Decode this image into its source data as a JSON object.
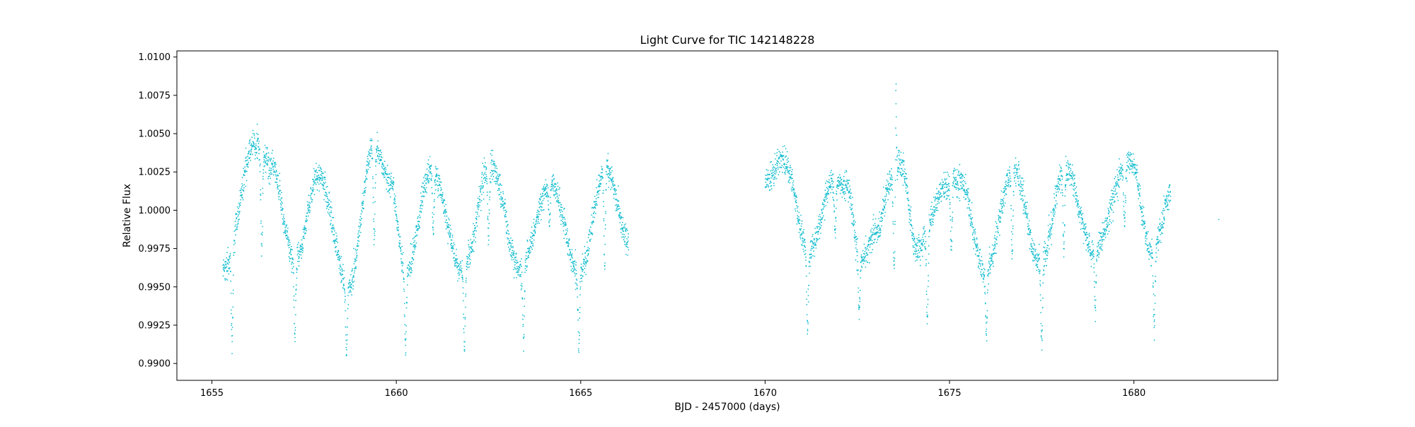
{
  "chart_data": {
    "type": "scatter",
    "title": "Light Curve for TIC 142148228",
    "xlabel": "BJD - 2457000 (days)",
    "ylabel": "Relative Flux",
    "xlim": [
      1654.05,
      1683.9
    ],
    "ylim": [
      0.9889,
      1.0104
    ],
    "x_ticks": [
      1655,
      1660,
      1665,
      1670,
      1675,
      1680
    ],
    "x_tick_labels": [
      "1655",
      "1660",
      "1665",
      "1670",
      "1675",
      "1680"
    ],
    "y_ticks": [
      0.99,
      0.9925,
      0.995,
      0.9975,
      1.0,
      1.0025,
      1.005,
      1.0075,
      1.01
    ],
    "y_tick_labels": [
      "0.9900",
      "0.9925",
      "0.9950",
      "0.9975",
      "1.0000",
      "1.0025",
      "1.0050",
      "1.0075",
      "1.0100"
    ],
    "grid": false,
    "marker_color": "#17becf",
    "series": [
      {
        "segments": [
          {
            "x_range": [
              1655.3,
              1666.3
            ],
            "cadence_days": 0.00139
          },
          {
            "x_range": [
              1670.0,
              1681.0
            ],
            "cadence_days": 0.00139
          }
        ],
        "modulation_extrema": [
          [
            1655.35,
            0.9963
          ],
          [
            1656.15,
            1.0043
          ],
          [
            1656.6,
            1.003
          ],
          [
            1657.25,
            0.9968
          ],
          [
            1657.9,
            1.0023
          ],
          [
            1658.7,
            0.995
          ],
          [
            1659.4,
            1.0042
          ],
          [
            1659.85,
            1.0018
          ],
          [
            1660.25,
            0.9958
          ],
          [
            1660.95,
            1.0027
          ],
          [
            1661.8,
            0.996
          ],
          [
            1662.55,
            1.003
          ],
          [
            1663.35,
            0.9962
          ],
          [
            1664.2,
            1.0017
          ],
          [
            1664.95,
            0.9958
          ],
          [
            1665.7,
            1.0028
          ],
          [
            1666.3,
            0.998
          ],
          [
            1670.0,
            1.0018
          ],
          [
            1670.5,
            1.0033
          ],
          [
            1671.2,
            0.9973
          ],
          [
            1671.85,
            1.0018
          ],
          [
            1672.2,
            1.0015
          ],
          [
            1672.6,
            0.9967
          ],
          [
            1673.0,
            0.9985
          ],
          [
            1673.45,
            1.002
          ],
          [
            1673.7,
            1.003
          ],
          [
            1674.1,
            0.9975
          ],
          [
            1674.9,
            1.0015
          ],
          [
            1675.3,
            1.002
          ],
          [
            1675.95,
            0.996
          ],
          [
            1676.75,
            1.0027
          ],
          [
            1677.45,
            0.9965
          ],
          [
            1678.15,
            1.0027
          ],
          [
            1678.9,
            0.9973
          ],
          [
            1679.9,
            1.0033
          ],
          [
            1680.5,
            0.9972
          ],
          [
            1681.0,
            1.001
          ]
        ],
        "eclipse_minima": [
          [
            1655.55,
            0.9915
          ],
          [
            1656.35,
            0.9975
          ],
          [
            1657.25,
            0.9915
          ],
          [
            1658.65,
            0.9905
          ],
          [
            1659.4,
            0.998
          ],
          [
            1660.25,
            0.991
          ],
          [
            1661.0,
            0.9985
          ],
          [
            1661.85,
            0.991
          ],
          [
            1662.5,
            0.998
          ],
          [
            1663.45,
            0.9915
          ],
          [
            1664.15,
            0.999
          ],
          [
            1664.95,
            0.991
          ],
          [
            1665.65,
            0.9968
          ],
          [
            1671.15,
            0.9923
          ],
          [
            1671.9,
            0.9985
          ],
          [
            1672.55,
            0.9935
          ],
          [
            1673.5,
            0.9962
          ],
          [
            1674.4,
            0.9928
          ],
          [
            1675.05,
            0.9975
          ],
          [
            1676.0,
            0.9918
          ],
          [
            1676.7,
            0.997
          ],
          [
            1677.5,
            0.9915
          ],
          [
            1678.1,
            0.9975
          ],
          [
            1678.95,
            0.9935
          ],
          [
            1679.75,
            0.9988
          ],
          [
            1680.55,
            0.9925
          ]
        ],
        "flare_peak": [
          1673.55,
          1.009
        ],
        "scatter_sigma": 0.00045,
        "outlier_points": [
          [
            1682.3,
            0.9994
          ]
        ]
      }
    ]
  }
}
